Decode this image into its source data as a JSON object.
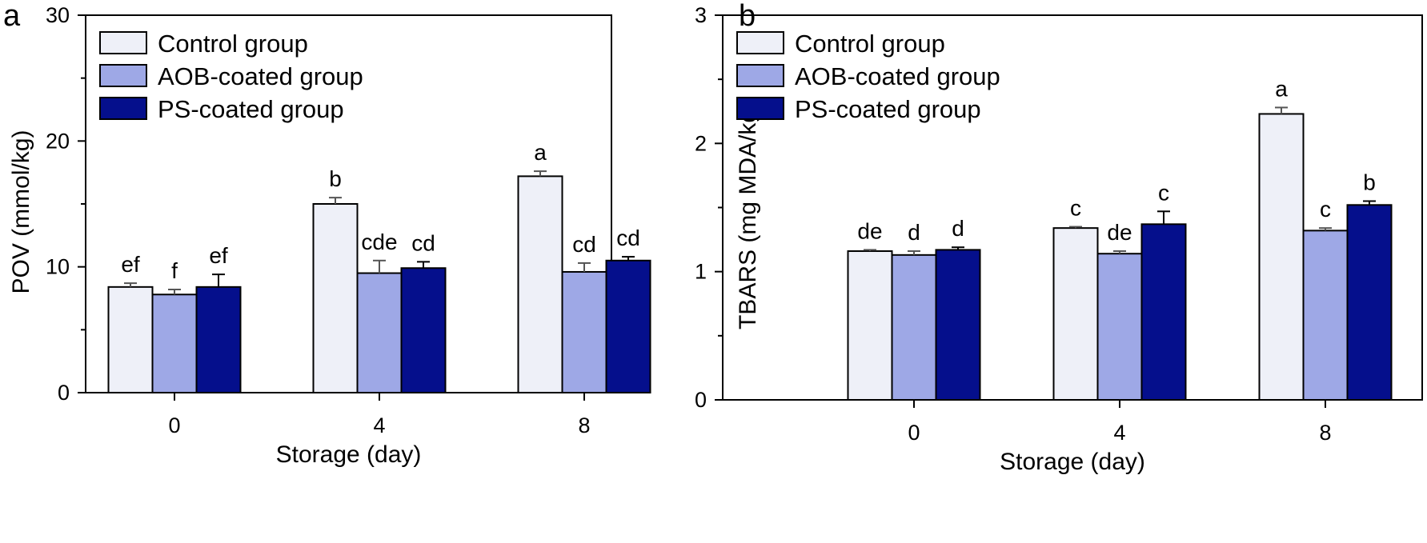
{
  "legend": {
    "items": [
      {
        "label": "Control group",
        "color": "#eef0f8"
      },
      {
        "label": "AOB-coated group",
        "color": "#9ea8e6"
      },
      {
        "label": "PS-coated group",
        "color": "#050f8c"
      }
    ]
  },
  "chart_data": [
    {
      "type": "bar",
      "panel_label": "a",
      "categories": [
        "0",
        "4",
        "8"
      ],
      "xlabel": "Storage (day)",
      "ylabel": "POV (mmol/kg)",
      "ylim": [
        0,
        30
      ],
      "yticks": [
        "0",
        "10",
        "20",
        "30"
      ],
      "grid": false,
      "legend_position": "top-left",
      "series": [
        {
          "name": "Control group",
          "values": [
            8.4,
            15.0,
            17.2
          ],
          "errors": [
            0.3,
            0.5,
            0.4
          ],
          "labels": [
            "ef",
            "b",
            "a"
          ]
        },
        {
          "name": "AOB-coated group",
          "values": [
            7.8,
            9.5,
            9.6
          ],
          "errors": [
            0.4,
            1.0,
            0.7
          ],
          "labels": [
            "f",
            "cde",
            "cd"
          ]
        },
        {
          "name": "PS-coated group",
          "values": [
            8.4,
            9.9,
            10.5
          ],
          "errors": [
            1.0,
            0.5,
            0.3
          ],
          "labels": [
            "ef",
            "cd",
            "cd"
          ]
        }
      ]
    },
    {
      "type": "bar",
      "panel_label": "b",
      "categories": [
        "0",
        "4",
        "8"
      ],
      "xlabel": "Storage (day)",
      "ylabel": "TBARS (mg MDA/kg)",
      "ylim": [
        0,
        3
      ],
      "yticks": [
        "0",
        "1",
        "2",
        "3"
      ],
      "grid": false,
      "legend_position": "top-left",
      "series": [
        {
          "name": "Control group",
          "values": [
            1.16,
            1.34,
            2.23
          ],
          "errors": [
            0.01,
            0.01,
            0.05
          ],
          "labels": [
            "de",
            "c",
            "a"
          ]
        },
        {
          "name": "AOB-coated group",
          "values": [
            1.13,
            1.14,
            1.32
          ],
          "errors": [
            0.03,
            0.02,
            0.02
          ],
          "labels": [
            "d",
            "de",
            "c"
          ]
        },
        {
          "name": "PS-coated group",
          "values": [
            1.17,
            1.37,
            1.52
          ],
          "errors": [
            0.02,
            0.1,
            0.03
          ],
          "labels": [
            "d",
            "c",
            "b"
          ]
        }
      ]
    }
  ]
}
